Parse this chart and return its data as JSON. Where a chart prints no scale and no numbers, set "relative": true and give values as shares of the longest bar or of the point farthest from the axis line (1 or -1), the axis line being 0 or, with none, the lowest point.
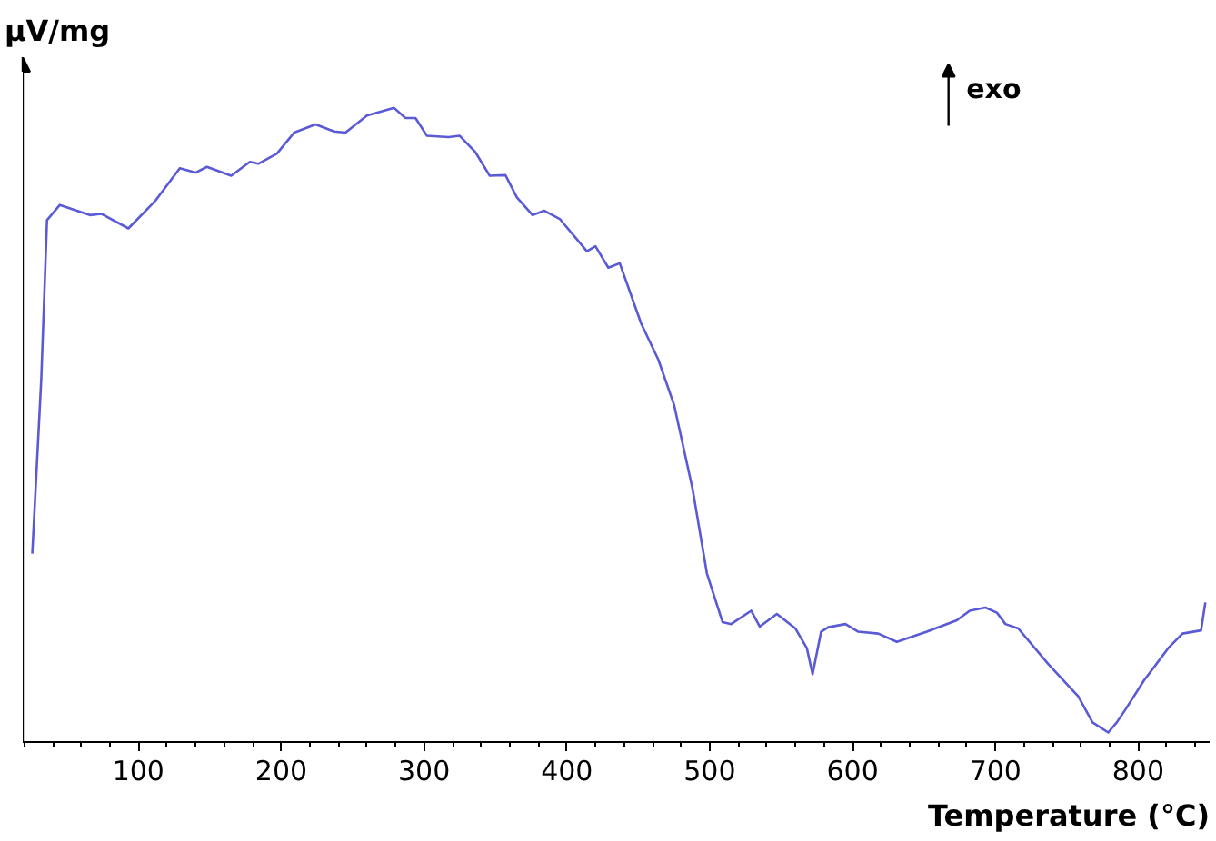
{
  "chart_data": {
    "type": "line",
    "relative": true,
    "xlabel": "Temperature (°C)",
    "ylabel": "μV/mg",
    "annotations": [
      "exo"
    ],
    "xlim": [
      19,
      850
    ],
    "xticks": [
      100,
      200,
      300,
      400,
      500,
      600,
      700,
      800
    ],
    "grid": false,
    "marker": "none",
    "line_style": "solid",
    "series": [
      {
        "color": "#5a5ad6",
        "x": [
          25.7,
          32,
          36,
          45,
          66,
          74,
          93,
          112,
          129,
          140,
          148,
          165,
          178,
          184,
          197,
          209,
          224,
          237,
          245,
          260,
          279,
          287,
          294,
          302,
          317,
          325,
          336,
          346,
          357,
          365,
          376,
          384,
          395,
          414,
          420,
          429,
          437,
          452,
          464,
          475,
          488,
          498,
          509,
          515,
          529,
          535,
          547,
          560,
          568,
          572,
          578,
          583,
          595,
          604,
          618,
          631,
          652,
          673,
          682,
          693,
          701,
          707,
          716,
          737,
          758,
          768,
          779,
          785,
          791,
          804,
          821,
          831,
          844,
          847
        ],
        "values": [
          0.297,
          0.573,
          0.823,
          0.847,
          0.831,
          0.833,
          0.81,
          0.854,
          0.905,
          0.898,
          0.907,
          0.893,
          0.915,
          0.912,
          0.928,
          0.961,
          0.974,
          0.963,
          0.961,
          0.988,
          1.0,
          0.984,
          0.984,
          0.956,
          0.954,
          0.956,
          0.93,
          0.893,
          0.894,
          0.859,
          0.831,
          0.838,
          0.825,
          0.774,
          0.782,
          0.748,
          0.755,
          0.66,
          0.603,
          0.532,
          0.399,
          0.266,
          0.189,
          0.186,
          0.207,
          0.182,
          0.202,
          0.179,
          0.148,
          0.107,
          0.174,
          0.181,
          0.186,
          0.174,
          0.171,
          0.158,
          0.174,
          0.192,
          0.207,
          0.212,
          0.204,
          0.186,
          0.179,
          0.123,
          0.072,
          0.031,
          0.015,
          0.031,
          0.051,
          0.097,
          0.148,
          0.171,
          0.176,
          0.22
        ]
      }
    ]
  }
}
